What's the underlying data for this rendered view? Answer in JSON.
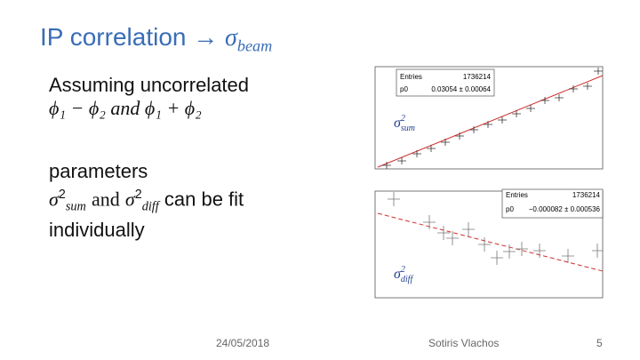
{
  "header": {
    "title": "IP correlation →",
    "symbol": "σ",
    "subscript": "beam"
  },
  "bullets": [
    {
      "lines": [
        "Assuming uncorrelated",
        "ϕ₁ − ϕ₂ and ϕ₁ + ϕ₂"
      ]
    },
    {
      "first": "parameters",
      "symbol": "σ",
      "sup": "2",
      "sum": "sum",
      "and": "and",
      "diff": "diff",
      "tail": "can be fit",
      "last": "individually"
    }
  ],
  "plots": [
    {
      "entries_label": "Entries",
      "entries": "1736214",
      "param_label": "p0",
      "param": "0.03054 ± 0.00064"
    },
    {
      "entries_label": "Entries",
      "entries": "1736214",
      "param_label": "p0",
      "param": "−0.000082 ± 0.000536"
    }
  ],
  "footer": {
    "date": "24/05/2018",
    "author": "Sotiris Vlachos",
    "page": "5"
  }
}
